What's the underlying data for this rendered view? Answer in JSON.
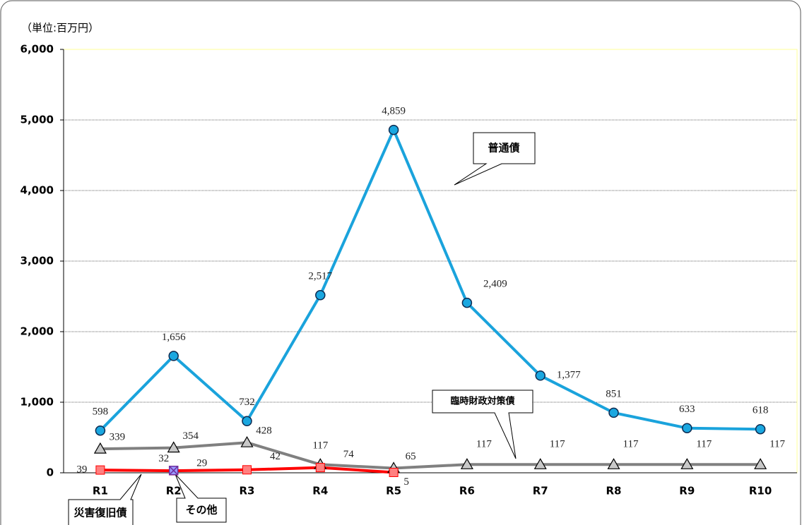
{
  "chart_data": {
    "type": "line",
    "unit_label": "（単位:百万円）",
    "categories": [
      "R1",
      "R2",
      "R3",
      "R4",
      "R5",
      "R6",
      "R7",
      "R8",
      "R9",
      "R10"
    ],
    "ylim": [
      0,
      6000
    ],
    "yticks": [
      0,
      {
        "value": 1000,
        "label": "1,000"
      },
      {
        "value": 2000,
        "label": "2,000"
      },
      {
        "value": 3000,
        "label": "3,000"
      },
      {
        "value": 4000,
        "label": "4,000"
      },
      {
        "value": 5000,
        "label": "5,000"
      },
      {
        "value": 6000,
        "label": "6,000"
      }
    ],
    "grid": true,
    "series": [
      {
        "name": "普通債",
        "color": "#1aa3dc",
        "marker": "circle",
        "values": [
          598,
          1656,
          732,
          2517,
          4859,
          2409,
          1377,
          851,
          633,
          618
        ],
        "value_labels": [
          "598",
          "1,656",
          "732",
          "2,517",
          "4,859",
          "2,409",
          "1,377",
          "851",
          "633",
          "618"
        ]
      },
      {
        "name": "臨時財政対策債",
        "color": "#808080",
        "marker": "triangle",
        "values": [
          339,
          354,
          428,
          117,
          65,
          117,
          117,
          117,
          117,
          117
        ]
      },
      {
        "name": "災害復旧債",
        "color": "#ff0000",
        "marker": "square",
        "values": [
          39,
          29,
          42,
          74,
          5,
          null,
          null,
          null,
          null,
          null
        ]
      },
      {
        "name": "その他",
        "color": "#7030a0",
        "marker": "cross",
        "values": [
          null,
          32,
          null,
          null,
          null,
          null,
          null,
          null,
          null,
          null
        ]
      }
    ]
  }
}
